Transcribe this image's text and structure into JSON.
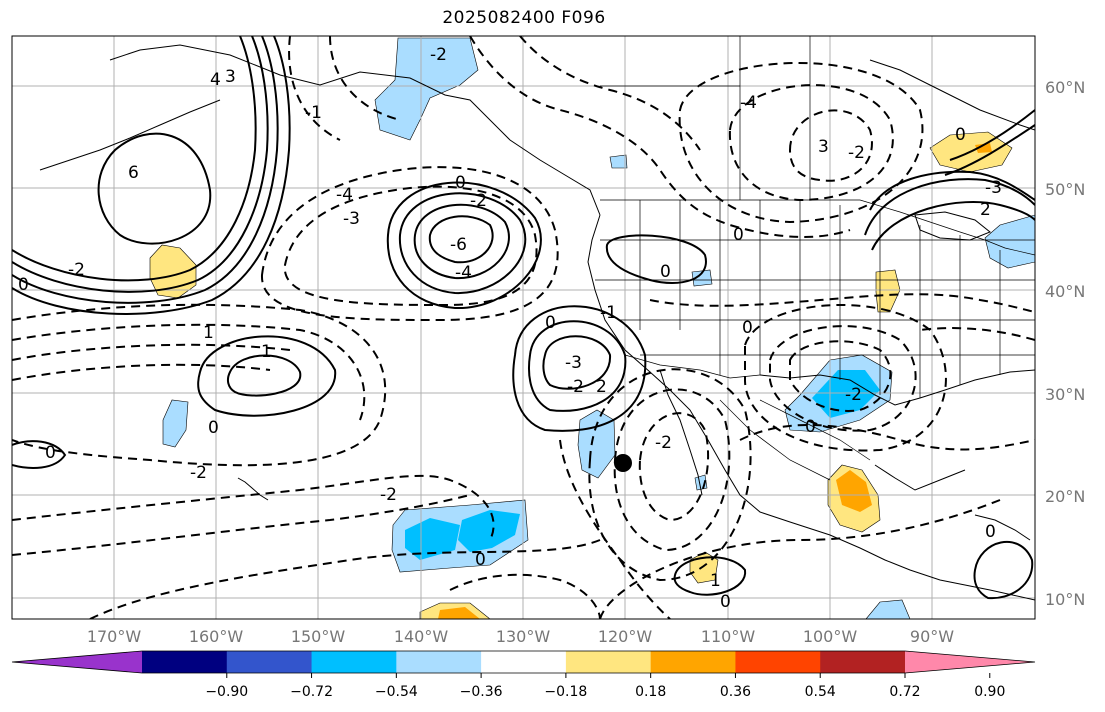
{
  "title": "2025082400 F096",
  "map": {
    "region": "North-East Pacific / North America",
    "lat_labels": [
      "60°N",
      "50°N",
      "40°N",
      "30°N",
      "20°N",
      "10°N"
    ],
    "lon_labels": [
      "170°W",
      "160°W",
      "150°W",
      "140°W",
      "130°W",
      "120°W",
      "110°W",
      "100°W",
      "90°W"
    ],
    "contour_labels": [
      "6",
      "3",
      "4",
      "-2",
      "-1",
      "0",
      "-4",
      "-2",
      "-6",
      "-4",
      "-3",
      "0",
      "-2",
      "1",
      "1",
      "0",
      "0",
      "-2",
      "-2",
      "0",
      "-3",
      "-2",
      "2",
      "-1",
      "0",
      "0",
      "-4",
      "3",
      "-2",
      "-3",
      "2",
      "0",
      "-2",
      "0",
      "0",
      "-2",
      "0",
      "1",
      "0",
      "0"
    ],
    "marker": "storm-position-marker"
  },
  "colorbar": {
    "ticks": [
      "−0.90",
      "−0.72",
      "−0.54",
      "−0.36",
      "−0.18",
      "0.18",
      "0.36",
      "0.54",
      "0.72",
      "0.90"
    ],
    "colors": [
      "#9933cc",
      "#000080",
      "#3355cc",
      "#00bfff",
      "#aaddff",
      "#ffffff",
      "#ffe680",
      "#ffa500",
      "#ff4400",
      "#b22222",
      "#ff88aa"
    ]
  }
}
